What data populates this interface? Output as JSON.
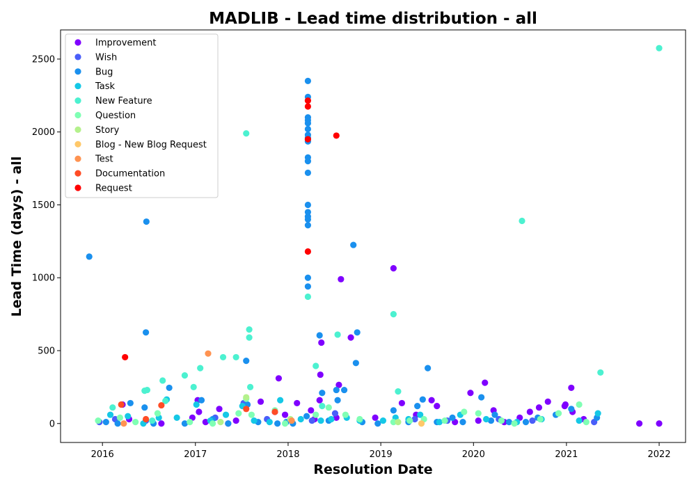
{
  "chart_data": {
    "type": "scatter",
    "title": "MADLIB - Lead time distribution - all",
    "xlabel": "Resolution Date",
    "ylabel": "Lead Time (days) - all",
    "xlim": [
      "2015-07-20",
      "2022-04-15"
    ],
    "ylim": [
      -130,
      2700
    ],
    "x_ticks": [
      "2016",
      "2017",
      "2018",
      "2019",
      "2020",
      "2021",
      "2022"
    ],
    "y_ticks": [
      0,
      500,
      1000,
      1500,
      2000,
      2500
    ],
    "grid": false,
    "legend_position": "top-left",
    "series": [
      {
        "name": "Improvement",
        "color": "#7f00ff",
        "points": [
          [
            "2016-03-20",
            130
          ],
          [
            "2016-04-15",
            30
          ],
          [
            "2016-08-20",
            0
          ],
          [
            "2016-12-20",
            40
          ],
          [
            "2017-01-10",
            160
          ],
          [
            "2017-01-15",
            80
          ],
          [
            "2017-02-10",
            10
          ],
          [
            "2017-04-05",
            100
          ],
          [
            "2017-05-10",
            0
          ],
          [
            "2017-06-10",
            20
          ],
          [
            "2017-07-10",
            130
          ],
          [
            "2017-09-15",
            150
          ],
          [
            "2017-11-10",
            80
          ],
          [
            "2017-11-25",
            310
          ],
          [
            "2017-12-20",
            60
          ],
          [
            "2018-02-05",
            140
          ],
          [
            "2018-04-01",
            90
          ],
          [
            "2018-04-15",
            30
          ],
          [
            "2018-05-05",
            160
          ],
          [
            "2018-05-08",
            335
          ],
          [
            "2018-05-12",
            555
          ],
          [
            "2018-07-10",
            40
          ],
          [
            "2018-07-20",
            265
          ],
          [
            "2018-07-28",
            990
          ],
          [
            "2018-09-05",
            590
          ],
          [
            "2018-12-10",
            40
          ],
          [
            "2019-02-20",
            1065
          ],
          [
            "2019-03-25",
            140
          ],
          [
            "2019-05-20",
            60
          ],
          [
            "2019-07-20",
            160
          ],
          [
            "2019-08-10",
            120
          ],
          [
            "2019-10-20",
            10
          ],
          [
            "2019-12-20",
            210
          ],
          [
            "2020-01-20",
            20
          ],
          [
            "2020-02-15",
            280
          ],
          [
            "2020-03-20",
            90
          ],
          [
            "2020-05-01",
            10
          ],
          [
            "2020-07-01",
            40
          ],
          [
            "2020-08-10",
            80
          ],
          [
            "2020-09-15",
            110
          ],
          [
            "2020-10-20",
            150
          ],
          [
            "2020-12-25",
            120
          ],
          [
            "2020-12-28",
            130
          ],
          [
            "2021-01-20",
            245
          ],
          [
            "2021-01-25",
            80
          ],
          [
            "2021-03-10",
            30
          ],
          [
            "2021-10-15",
            0
          ],
          [
            "2022-01-01",
            0
          ]
        ]
      },
      {
        "name": "Wish",
        "color": "#4a5ef9",
        "points": [
          [
            "2015-12-20",
            10
          ],
          [
            "2016-02-20",
            30
          ],
          [
            "2016-06-20",
            20
          ],
          [
            "2017-03-20",
            40
          ],
          [
            "2017-07-10",
            140
          ],
          [
            "2017-10-10",
            30
          ],
          [
            "2018-04-05",
            20
          ],
          [
            "2018-07-05",
            70
          ],
          [
            "2019-05-15",
            30
          ],
          [
            "2019-09-20",
            20
          ],
          [
            "2020-04-10",
            30
          ],
          [
            "2020-08-20",
            20
          ],
          [
            "2021-04-20",
            10
          ]
        ]
      },
      {
        "name": "Bug",
        "color": "#1a90ee",
        "points": [
          [
            "2015-11-10",
            1145
          ],
          [
            "2016-01-15",
            10
          ],
          [
            "2016-03-01",
            0
          ],
          [
            "2016-04-20",
            140
          ],
          [
            "2016-06-15",
            110
          ],
          [
            "2016-06-20",
            625
          ],
          [
            "2016-06-22",
            1385
          ],
          [
            "2016-07-20",
            0
          ],
          [
            "2016-09-20",
            245
          ],
          [
            "2016-11-20",
            0
          ],
          [
            "2017-01-25",
            160
          ],
          [
            "2017-03-10",
            30
          ],
          [
            "2017-05-10",
            0
          ],
          [
            "2017-07-20",
            430
          ],
          [
            "2017-07-25",
            130
          ],
          [
            "2017-09-05",
            10
          ],
          [
            "2017-11-20",
            0
          ],
          [
            "2017-12-25",
            10
          ],
          [
            "2018-01-20",
            0
          ],
          [
            "2018-03-15",
            50
          ],
          [
            "2018-03-20",
            1000
          ],
          [
            "2018-03-20",
            940
          ],
          [
            "2018-03-20",
            1360
          ],
          [
            "2018-03-20",
            1400
          ],
          [
            "2018-03-20",
            1420
          ],
          [
            "2018-03-20",
            1450
          ],
          [
            "2018-03-20",
            1500
          ],
          [
            "2018-03-20",
            1720
          ],
          [
            "2018-03-20",
            1800
          ],
          [
            "2018-03-20",
            1825
          ],
          [
            "2018-03-20",
            1935
          ],
          [
            "2018-03-20",
            1960
          ],
          [
            "2018-03-20",
            1980
          ],
          [
            "2018-03-20",
            2020
          ],
          [
            "2018-03-20",
            2060
          ],
          [
            "2018-03-20",
            2080
          ],
          [
            "2018-03-20",
            2100
          ],
          [
            "2018-03-20",
            2240
          ],
          [
            "2018-03-20",
            2350
          ],
          [
            "2018-05-05",
            605
          ],
          [
            "2018-05-15",
            210
          ],
          [
            "2018-06-10",
            20
          ],
          [
            "2018-07-10",
            230
          ],
          [
            "2018-07-15",
            160
          ],
          [
            "2018-08-10",
            230
          ],
          [
            "2018-09-15",
            1225
          ],
          [
            "2018-09-25",
            415
          ],
          [
            "2018-09-30",
            625
          ],
          [
            "2018-10-20",
            10
          ],
          [
            "2018-12-20",
            0
          ],
          [
            "2019-02-20",
            90
          ],
          [
            "2019-04-20",
            10
          ],
          [
            "2019-05-25",
            120
          ],
          [
            "2019-06-15",
            165
          ],
          [
            "2019-07-05",
            380
          ],
          [
            "2019-08-10",
            10
          ],
          [
            "2019-10-10",
            40
          ],
          [
            "2019-11-20",
            10
          ],
          [
            "2020-02-01",
            180
          ],
          [
            "2020-03-10",
            20
          ],
          [
            "2020-03-25",
            60
          ],
          [
            "2020-05-20",
            10
          ],
          [
            "2020-07-25",
            10
          ],
          [
            "2020-09-10",
            40
          ],
          [
            "2020-11-20",
            60
          ],
          [
            "2021-01-20",
            100
          ],
          [
            "2021-05-01",
            40
          ]
        ]
      },
      {
        "name": "Task",
        "color": "#15c8e6",
        "points": [
          [
            "2016-02-01",
            60
          ],
          [
            "2016-04-10",
            50
          ],
          [
            "2016-06-10",
            0
          ],
          [
            "2016-08-10",
            40
          ],
          [
            "2016-09-10",
            165
          ],
          [
            "2016-10-20",
            40
          ],
          [
            "2017-01-05",
            130
          ],
          [
            "2017-03-01",
            20
          ],
          [
            "2017-05-01",
            60
          ],
          [
            "2017-07-05",
            120
          ],
          [
            "2017-08-20",
            20
          ],
          [
            "2017-10-20",
            10
          ],
          [
            "2017-12-01",
            160
          ],
          [
            "2018-02-20",
            30
          ],
          [
            "2018-05-10",
            20
          ],
          [
            "2018-06-20",
            30
          ],
          [
            "2018-08-20",
            40
          ],
          [
            "2018-10-10",
            20
          ],
          [
            "2019-01-10",
            20
          ],
          [
            "2019-02-28",
            40
          ],
          [
            "2019-04-20",
            30
          ],
          [
            "2019-06-05",
            60
          ],
          [
            "2019-08-20",
            10
          ],
          [
            "2019-11-10",
            60
          ],
          [
            "2020-02-20",
            30
          ],
          [
            "2020-06-20",
            10
          ],
          [
            "2020-09-25",
            30
          ],
          [
            "2021-02-20",
            20
          ],
          [
            "2021-05-05",
            70
          ]
        ]
      },
      {
        "name": "New Feature",
        "color": "#4cf1d0",
        "points": [
          [
            "2016-02-10",
            110
          ],
          [
            "2016-06-15",
            225
          ],
          [
            "2016-06-25",
            230
          ],
          [
            "2016-07-15",
            20
          ],
          [
            "2016-08-25",
            295
          ],
          [
            "2016-09-05",
            155
          ],
          [
            "2016-11-20",
            330
          ],
          [
            "2016-12-25",
            250
          ],
          [
            "2017-01-20",
            380
          ],
          [
            "2017-04-20",
            455
          ],
          [
            "2017-06-10",
            455
          ],
          [
            "2017-07-20",
            1990
          ],
          [
            "2017-08-01",
            645
          ],
          [
            "2017-08-01",
            590
          ],
          [
            "2017-08-05",
            250
          ],
          [
            "2018-03-20",
            870
          ],
          [
            "2018-04-20",
            395
          ],
          [
            "2018-05-15",
            120
          ],
          [
            "2018-07-15",
            610
          ],
          [
            "2019-02-20",
            750
          ],
          [
            "2019-03-10",
            220
          ],
          [
            "2020-07-10",
            1390
          ],
          [
            "2021-05-15",
            350
          ],
          [
            "2022-01-01",
            2575
          ]
        ]
      },
      {
        "name": "Question",
        "color": "#80ffb4",
        "points": [
          [
            "2015-12-15",
            20
          ],
          [
            "2016-03-10",
            40
          ],
          [
            "2016-05-10",
            10
          ],
          [
            "2016-08-05",
            70
          ],
          [
            "2016-12-10",
            10
          ],
          [
            "2017-03-10",
            0
          ],
          [
            "2017-06-20",
            70
          ],
          [
            "2017-07-20",
            170
          ],
          [
            "2017-08-10",
            60
          ],
          [
            "2017-11-10",
            90
          ],
          [
            "2017-12-20",
            0
          ],
          [
            "2018-04-20",
            60
          ],
          [
            "2018-06-10",
            110
          ],
          [
            "2018-08-15",
            60
          ],
          [
            "2018-10-10",
            30
          ],
          [
            "2019-02-20",
            10
          ],
          [
            "2019-04-25",
            20
          ],
          [
            "2019-06-20",
            30
          ],
          [
            "2019-09-10",
            20
          ],
          [
            "2019-11-25",
            80
          ],
          [
            "2020-01-20",
            70
          ],
          [
            "2020-04-20",
            20
          ],
          [
            "2020-06-10",
            0
          ],
          [
            "2020-09-20",
            30
          ],
          [
            "2020-12-01",
            70
          ],
          [
            "2021-02-20",
            130
          ],
          [
            "2021-03-20",
            10
          ]
        ]
      },
      {
        "name": "Story",
        "color": "#b4f18c",
        "points": [
          [
            "2017-04-10",
            10
          ],
          [
            "2017-07-20",
            180
          ],
          [
            "2018-01-10",
            30
          ],
          [
            "2019-03-10",
            10
          ]
        ]
      },
      {
        "name": "Blog - New Blog Request",
        "color": "#ffc869",
        "points": [
          [
            "2019-06-10",
            0
          ]
        ]
      },
      {
        "name": "Test",
        "color": "#ff9351",
        "points": [
          [
            "2016-03-25",
            0
          ],
          [
            "2017-02-20",
            480
          ],
          [
            "2018-01-15",
            20
          ]
        ]
      },
      {
        "name": "Documentation",
        "color": "#ff4c25",
        "points": [
          [
            "2016-03-15",
            130
          ],
          [
            "2016-06-20",
            30
          ],
          [
            "2016-08-20",
            125
          ],
          [
            "2017-07-20",
            100
          ],
          [
            "2017-11-10",
            80
          ]
        ]
      },
      {
        "name": "Request",
        "color": "#ff0000",
        "points": [
          [
            "2016-03-30",
            455
          ],
          [
            "2018-03-20",
            1180
          ],
          [
            "2018-03-20",
            1950
          ],
          [
            "2018-03-20",
            2175
          ],
          [
            "2018-03-20",
            2215
          ],
          [
            "2018-07-10",
            1975
          ]
        ]
      }
    ]
  }
}
